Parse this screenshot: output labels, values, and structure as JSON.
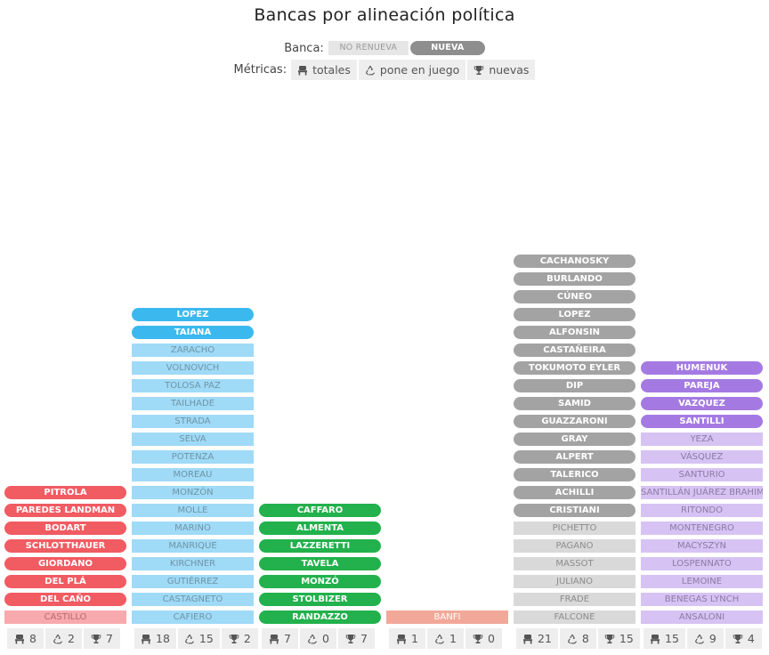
{
  "title": "Bancas por alineación política",
  "banca": {
    "label": "Banca:",
    "option_off": "NO RENUEVA",
    "option_on": "NUEVA"
  },
  "metricas": {
    "label": "Métricas:",
    "buttons": [
      {
        "icon": "seat-icon",
        "label": "totales"
      },
      {
        "icon": "recycle-icon",
        "label": "pone en juego"
      },
      {
        "icon": "trophy-icon",
        "label": "nuevas"
      }
    ]
  },
  "chart_data": {
    "type": "bar",
    "title": "Bancas por alineación política",
    "groups": [
      {
        "color_nueva": "#f15b62",
        "color_norenueva": "#f8a9ad",
        "text_norenueva": "#b96a6d",
        "nueva": [
          "PITROLA",
          "PAREDES LANDMAN",
          "BODART",
          "SCHLOTTHAUER",
          "GIORDANO",
          "DEL PLÁ",
          "DEL CAÑO"
        ],
        "no_renueva": [
          "CASTILLO"
        ],
        "totales": 8,
        "pone_en_juego": 2,
        "nuevas": 7
      },
      {
        "color_nueva": "#3bb9ee",
        "color_norenueva": "#9fdaf7",
        "text_norenueva": "#6f95a6",
        "nueva": [
          "LOPEZ",
          "TAIANA"
        ],
        "no_renueva": [
          "ZARACHO",
          "VOLNOVICH",
          "TOLOSA PAZ",
          "TAILHADE",
          "STRADA",
          "SELVA",
          "POTENZA",
          "MOREAU",
          "MONZÓN",
          "MOLLE",
          "MARINO",
          "MANRIQUE",
          "KIRCHNER",
          "GUTIÉRREZ",
          "CASTAGNETO",
          "CAFIERO"
        ],
        "totales": 18,
        "pone_en_juego": 15,
        "nuevas": 2
      },
      {
        "color_nueva": "#22b14c",
        "color_norenueva": "#a3e0b3",
        "text_norenueva": "#5d8a68",
        "nueva": [
          "CAFFARO",
          "ALMENTA",
          "LAZZERETTI",
          "TAVELA",
          "MONZÓ",
          "STOLBIZER",
          "RANDAZZO"
        ],
        "no_renueva": [],
        "totales": 7,
        "pone_en_juego": 0,
        "nuevas": 7
      },
      {
        "color_nueva": "#e08070",
        "color_norenueva": "#f1a899",
        "text_norenueva": "#ffffff",
        "nueva": [],
        "no_renueva": [
          "BANFI"
        ],
        "totales": 1,
        "pone_en_juego": 1,
        "nuevas": 0
      },
      {
        "color_nueva": "#a3a3a3",
        "color_norenueva": "#d9d9d9",
        "text_norenueva": "#8c8c8c",
        "nueva": [
          "CACHANOSKY",
          "BURLANDO",
          "CÚNEO",
          "LOPEZ",
          "ALFONSIN",
          "CASTAÑEIRA",
          "TOKUMOTO EYLER",
          "DIP",
          "SAMID",
          "GUAZZARONI",
          "GRAY",
          "ALPERT",
          "TALERICO",
          "ACHILLI",
          "CRISTIANI"
        ],
        "no_renueva": [
          "PICHETTO",
          "PAGANO",
          "MASSOT",
          "JULIANO",
          "FRADE",
          "FALCONE"
        ],
        "totales": 21,
        "pone_en_juego": 8,
        "nuevas": 15
      },
      {
        "color_nueva": "#a47ae2",
        "color_norenueva": "#d6c3f3",
        "text_norenueva": "#8c7aa6",
        "nueva": [
          "HUMENUK",
          "PAREJA",
          "VAZQUEZ",
          "SANTILLI"
        ],
        "no_renueva": [
          "YEZA",
          "VÁSQUEZ",
          "SANTURIO",
          "SANTILLÁN JUÁREZ BRAHIM",
          "RITONDO",
          "MONTENEGRO",
          "MACYSZYN",
          "LOSPENNATO",
          "LEMOINE",
          "BENEGAS LYNCH",
          "ANSALONI"
        ],
        "totales": 15,
        "pone_en_juego": 9,
        "nuevas": 4
      }
    ]
  }
}
